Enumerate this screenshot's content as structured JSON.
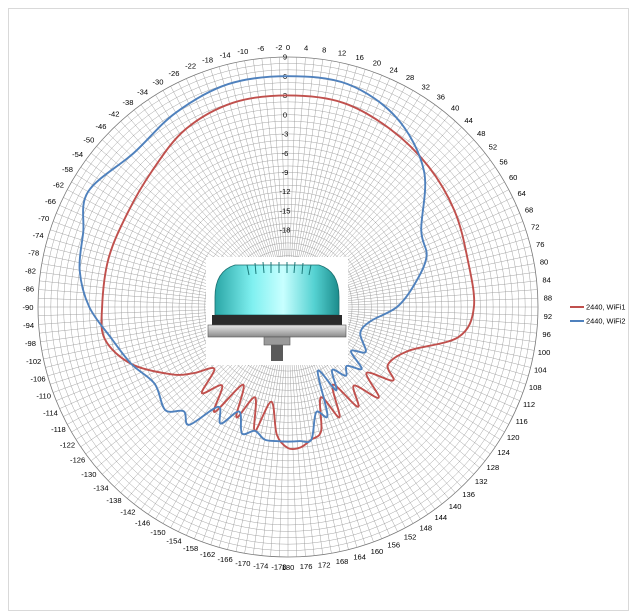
{
  "chart_data": {
    "type": "polar-line",
    "title": "",
    "angle_unit": "degrees",
    "angle_ticks": [
      0,
      4,
      8,
      12,
      16,
      20,
      24,
      28,
      32,
      36,
      40,
      44,
      48,
      52,
      56,
      60,
      64,
      68,
      72,
      76,
      80,
      84,
      88,
      92,
      96,
      100,
      104,
      108,
      112,
      116,
      120,
      124,
      128,
      132,
      136,
      140,
      144,
      148,
      152,
      156,
      160,
      164,
      168,
      172,
      176,
      180,
      -178,
      -174,
      -170,
      -166,
      -162,
      -158,
      -154,
      -150,
      -146,
      -142,
      -138,
      -134,
      -130,
      -126,
      -122,
      -118,
      -114,
      -110,
      -106,
      -102,
      -98,
      -94,
      -90,
      -86,
      -82,
      -78,
      -74,
      -70,
      -66,
      -62,
      -58,
      -54,
      -50,
      -46,
      -42,
      -38,
      -34,
      -30,
      -26,
      -22,
      -18,
      -14,
      -10,
      -6,
      -2
    ],
    "radial_ticks": [
      "9",
      "6",
      "3",
      "0",
      "-3",
      "-6",
      "-9",
      "-12",
      "-15",
      "-18"
    ],
    "radial_range": [
      -30,
      9
    ],
    "radial_unit": "dBi",
    "legend_position": "right",
    "series": [
      {
        "name": "2440, WiFi1",
        "color": "#c0504d",
        "angles": [
          0,
          15,
          30,
          45,
          60,
          75,
          90,
          100,
          110,
          120,
          125,
          130,
          135,
          140,
          145,
          150,
          155,
          160,
          165,
          170,
          175,
          180,
          185,
          190,
          195,
          200,
          205,
          210,
          215,
          220,
          225,
          230,
          235,
          240,
          250,
          260,
          270,
          285,
          300,
          315,
          330,
          345
        ],
        "values": [
          3,
          3,
          2,
          1,
          0,
          -1,
          -1,
          -3,
          -10,
          -12,
          -10,
          -14,
          -10,
          -14,
          -11,
          -16,
          -11,
          -15,
          -10,
          -9,
          -8,
          -8,
          -10,
          -15,
          -10,
          -15,
          -11,
          -16,
          -10,
          -14,
          -11,
          -15,
          -12,
          -9,
          -4,
          -1,
          -1,
          -1,
          -1,
          0,
          2,
          3
        ]
      },
      {
        "name": "2440, WiFi2",
        "color": "#4f81bd",
        "angles": [
          0,
          15,
          30,
          45,
          60,
          70,
          80,
          90,
          100,
          110,
          120,
          125,
          130,
          135,
          140,
          145,
          150,
          155,
          160,
          165,
          170,
          175,
          180,
          185,
          190,
          195,
          200,
          205,
          210,
          215,
          220,
          225,
          230,
          240,
          250,
          260,
          270,
          280,
          290,
          300,
          315,
          330,
          345
        ],
        "values": [
          6,
          6,
          4,
          0,
          -6,
          -7,
          -10,
          -13,
          -17,
          -18,
          -16,
          -18,
          -15,
          -17,
          -16,
          -18,
          -15,
          -19,
          -12,
          -13,
          -9,
          -9,
          -9,
          -9,
          -9,
          -10,
          -9,
          -12,
          -9,
          -11,
          -6,
          -7,
          -5,
          -6,
          -4,
          -2,
          1,
          3,
          4,
          6,
          4,
          5,
          6
        ]
      }
    ]
  }
}
